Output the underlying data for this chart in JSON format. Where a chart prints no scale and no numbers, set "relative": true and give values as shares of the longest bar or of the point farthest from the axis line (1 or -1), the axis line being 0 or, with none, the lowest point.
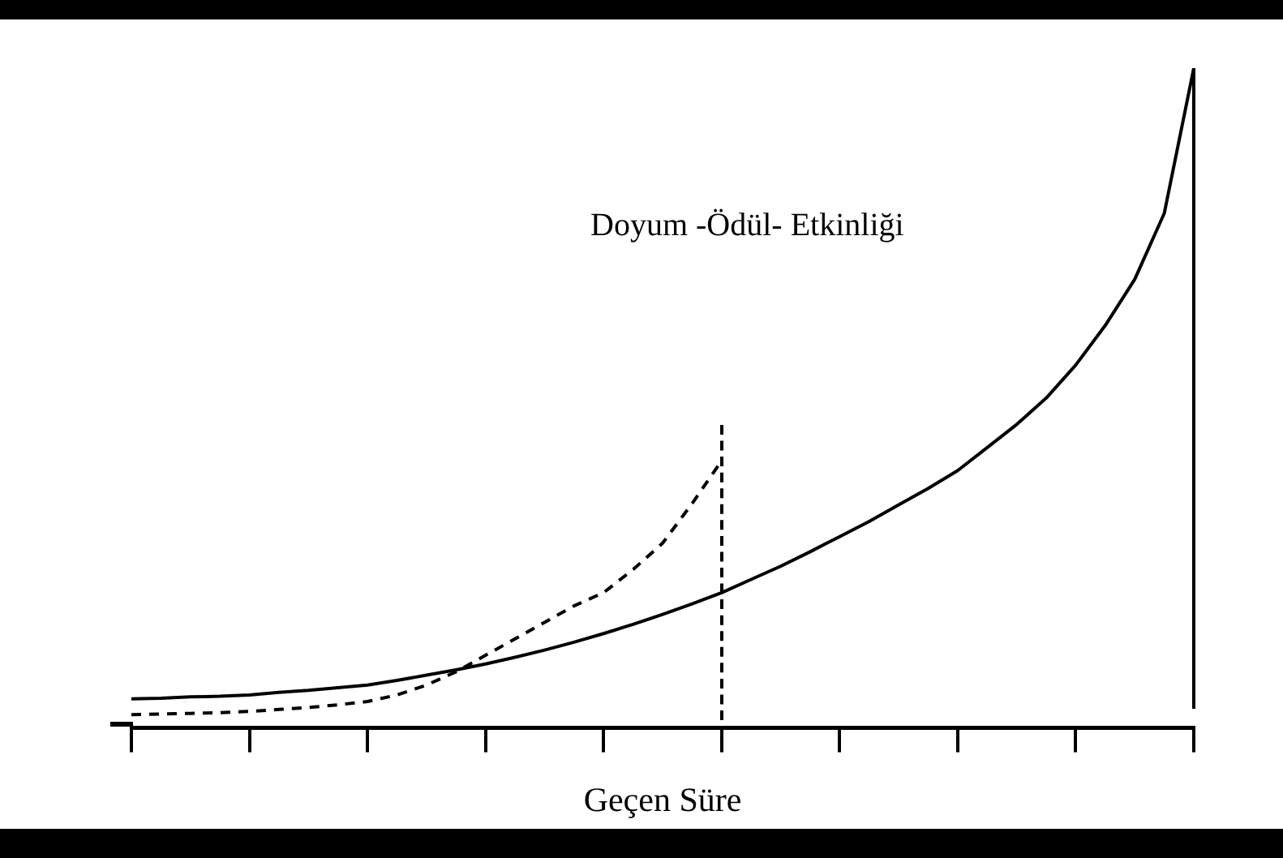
{
  "chart_data": {
    "type": "line",
    "relative": true,
    "xlabel": "Geçen Süre",
    "tick_labels": false,
    "legend": false,
    "grid": false,
    "marker": "none",
    "categories": [
      null,
      null,
      null,
      null,
      null,
      null,
      null,
      null,
      null,
      null,
      null,
      null,
      null,
      null,
      null,
      null,
      null,
      null,
      null,
      null,
      null,
      null,
      null,
      null,
      null,
      null,
      null,
      null,
      null,
      null,
      null,
      null,
      null,
      null,
      null,
      null,
      null
    ],
    "annotations": [
      "Doyum -Ödül- Etkinliği"
    ],
    "series": [
      {
        "color": "#000000",
        "line_style": "solid",
        "values": [
          0.044,
          0.045,
          0.047,
          0.048,
          0.05,
          0.054,
          0.057,
          0.061,
          0.065,
          0.072,
          0.08,
          0.088,
          0.097,
          0.107,
          0.118,
          0.13,
          0.143,
          0.157,
          0.172,
          0.188,
          0.205,
          0.225,
          0.245,
          0.267,
          0.29,
          0.313,
          0.338,
          0.363,
          0.39,
          0.425,
          0.46,
          0.5,
          0.55,
          0.61,
          0.68,
          0.78,
          1.0
        ]
      },
      {
        "color": "#000000",
        "line_style": "dashed",
        "values": [
          0.02,
          0.021,
          0.022,
          0.023,
          0.025,
          0.028,
          0.031,
          0.035,
          0.04,
          0.05,
          0.065,
          0.085,
          0.11,
          0.135,
          0.16,
          0.185,
          0.205,
          0.24,
          0.28,
          0.34,
          0.405,
          null,
          null,
          null,
          null,
          null,
          null,
          null,
          null,
          null,
          null,
          null,
          null,
          null,
          null,
          null,
          null
        ]
      }
    ]
  }
}
